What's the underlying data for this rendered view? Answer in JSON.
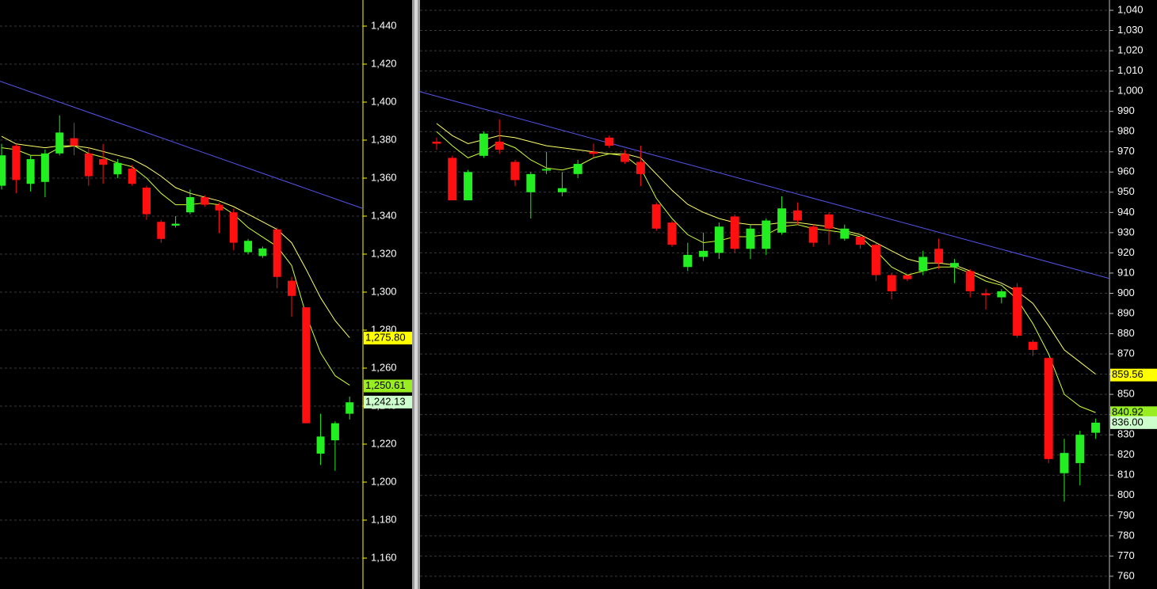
{
  "chart_data": [
    {
      "type": "candlestick",
      "ylim": [
        1143.75,
        1453.75
      ],
      "yticks": [
        {
          "value": 1160,
          "label": "1,160"
        },
        {
          "value": 1180,
          "label": "1,180"
        },
        {
          "value": 1200,
          "label": "1,200"
        },
        {
          "value": 1220,
          "label": "1,220"
        },
        {
          "value": 1240,
          "label": "1,240"
        },
        {
          "value": 1260,
          "label": "1,260"
        },
        {
          "value": 1280,
          "label": "1,280"
        },
        {
          "value": 1300,
          "label": "1,300"
        },
        {
          "value": 1320,
          "label": "1,320"
        },
        {
          "value": 1340,
          "label": "1,340"
        },
        {
          "value": 1360,
          "label": "1,360"
        },
        {
          "value": 1380,
          "label": "1,380"
        },
        {
          "value": 1400,
          "label": "1,400"
        },
        {
          "value": 1420,
          "label": "1,420"
        },
        {
          "value": 1440,
          "label": "1,440"
        }
      ],
      "grid": true,
      "axis_color": "#ffff00",
      "up_color": "#22ee22",
      "down_color": "#ff1010",
      "open": [
        1356,
        1377,
        1357,
        1358,
        1373,
        1381,
        1373,
        1370,
        1362,
        1365,
        1355,
        1337,
        1335,
        1342,
        1350,
        1346,
        1342,
        1321,
        1319,
        1333,
        1306,
        1292,
        1215,
        1222,
        1236
      ],
      "high": [
        1378,
        1378,
        1372,
        1375,
        1393,
        1389,
        1376,
        1378,
        1370,
        1367,
        1356,
        1338,
        1340,
        1354,
        1351,
        1347,
        1344,
        1328,
        1324,
        1334,
        1308,
        1292,
        1236,
        1232,
        1245
      ],
      "low": [
        1354,
        1352,
        1353,
        1350,
        1372,
        1372,
        1356,
        1357,
        1360,
        1356,
        1338,
        1326,
        1334,
        1341,
        1345,
        1331,
        1322,
        1320,
        1318,
        1302,
        1287,
        1231,
        1209,
        1206,
        1233
      ],
      "close": [
        1372,
        1359,
        1370,
        1373,
        1384,
        1377,
        1361,
        1367,
        1368,
        1357,
        1341,
        1328,
        1336,
        1350,
        1346,
        1343,
        1326,
        1327,
        1323,
        1308,
        1298,
        1231,
        1224,
        1231,
        1242
      ],
      "moving_averages": [
        {
          "color": "#ffff66",
          "values": [
            1382,
            1378,
            1377,
            1376,
            1377,
            1377,
            1376,
            1374,
            1372,
            1370,
            1366,
            1361,
            1355,
            1352,
            1350,
            1348,
            1345,
            1341,
            1337,
            1333,
            1326,
            1312,
            1297,
            1285,
            1276
          ]
        },
        {
          "color": "#ccff33",
          "values": [
            1376,
            1375,
            1372,
            1372,
            1376,
            1377,
            1373,
            1371,
            1368,
            1366,
            1360,
            1352,
            1346,
            1346,
            1347,
            1346,
            1341,
            1334,
            1329,
            1324,
            1314,
            1288,
            1268,
            1256,
            1251
          ]
        }
      ],
      "trend_line": {
        "color": "#5555ee",
        "values": [
          1411,
          1344
        ]
      },
      "price_labels": [
        {
          "value": 1275.8,
          "label": "1,275.80",
          "color": "#ffff00"
        },
        {
          "value": 1250.61,
          "label": "1,250.61",
          "color": "#99ee22"
        },
        {
          "value": 1242.13,
          "label": "1,242.13",
          "color": "#ccffcc"
        }
      ]
    },
    {
      "type": "candlestick",
      "ylim": [
        753.7,
        1045.1
      ],
      "yticks": [
        760,
        770,
        780,
        790,
        800,
        810,
        820,
        830,
        840,
        850,
        860,
        870,
        880,
        890,
        900,
        910,
        920,
        930,
        940,
        950,
        960,
        970,
        980,
        990,
        {
          "value": 1000,
          "label": "1,000"
        },
        {
          "value": 1010,
          "label": "1,010"
        },
        {
          "value": 1020,
          "label": "1,020"
        },
        {
          "value": 1030,
          "label": "1,030"
        },
        {
          "value": 1040,
          "label": "1,040"
        }
      ],
      "grid": true,
      "axis_color": "#bbbbbb",
      "up_color": "#22ee22",
      "down_color": "#ff1010",
      "open": [
        975,
        967,
        946,
        968,
        975,
        965,
        950,
        961,
        950,
        959,
        970,
        977,
        969,
        965,
        944,
        935,
        913,
        918,
        920,
        938,
        922,
        922,
        930,
        941,
        933,
        939,
        927,
        928,
        924,
        909,
        909,
        911,
        922,
        913,
        911,
        900,
        898,
        903,
        876,
        868,
        811,
        816,
        831
      ],
      "high": [
        977,
        968,
        961,
        980,
        986,
        966,
        960,
        970,
        960,
        966,
        974,
        978,
        971,
        973,
        945,
        936,
        925,
        930,
        935,
        939,
        934,
        937,
        948,
        945,
        934,
        940,
        934,
        929,
        925,
        910,
        909,
        921,
        927,
        917,
        912,
        902,
        902,
        905,
        877,
        868,
        828,
        832,
        838
      ],
      "low": [
        971,
        946,
        946,
        967,
        969,
        953,
        937,
        959,
        948,
        957,
        967,
        972,
        964,
        953,
        931,
        923,
        911,
        916,
        917,
        920,
        917,
        919,
        929,
        934,
        923,
        924,
        926,
        922,
        906,
        897,
        906,
        909,
        912,
        905,
        898,
        892,
        895,
        878,
        869,
        816,
        797,
        805,
        828
      ],
      "close": [
        974,
        946,
        960,
        979,
        971,
        956,
        959,
        961.5,
        952,
        964,
        969,
        973,
        965,
        959,
        932,
        924,
        919,
        921,
        933,
        922,
        932,
        936,
        942,
        936,
        925,
        932,
        932,
        924,
        909,
        901,
        907,
        918,
        915,
        915,
        901,
        899,
        901,
        879,
        872,
        818,
        821,
        830,
        836
      ],
      "moving_averages": [
        {
          "color": "#ffff66",
          "values": [
            984,
            978,
            974,
            976,
            978,
            977,
            975,
            973,
            972,
            971,
            970,
            969,
            969,
            967,
            959,
            951,
            944,
            940,
            937,
            935,
            934,
            934,
            935,
            935,
            934,
            933,
            931,
            929,
            925,
            921,
            917,
            915,
            915,
            914,
            911,
            908,
            905,
            901,
            895,
            884,
            872,
            866,
            860
          ]
        },
        {
          "color": "#ccff33",
          "values": [
            980,
            973,
            967,
            970,
            975,
            972,
            966,
            962,
            961,
            963,
            967,
            969,
            968,
            962,
            947,
            937,
            929,
            925,
            926,
            928,
            928,
            929,
            933,
            934,
            932,
            931,
            930,
            928,
            921,
            913,
            909,
            911,
            913,
            913,
            910,
            906,
            904,
            897,
            885,
            870,
            850,
            844,
            841
          ]
        }
      ],
      "trend_line": {
        "color": "#5555ee",
        "values": [
          999.7,
          907.3
        ]
      },
      "price_labels": [
        {
          "value": 859.56,
          "label": "859.56",
          "color": "#ffff00"
        },
        {
          "value": 840.92,
          "label": "840.92",
          "color": "#99ee22"
        },
        {
          "value": 836,
          "label": "836.00",
          "color": "#ccffcc"
        }
      ]
    }
  ]
}
